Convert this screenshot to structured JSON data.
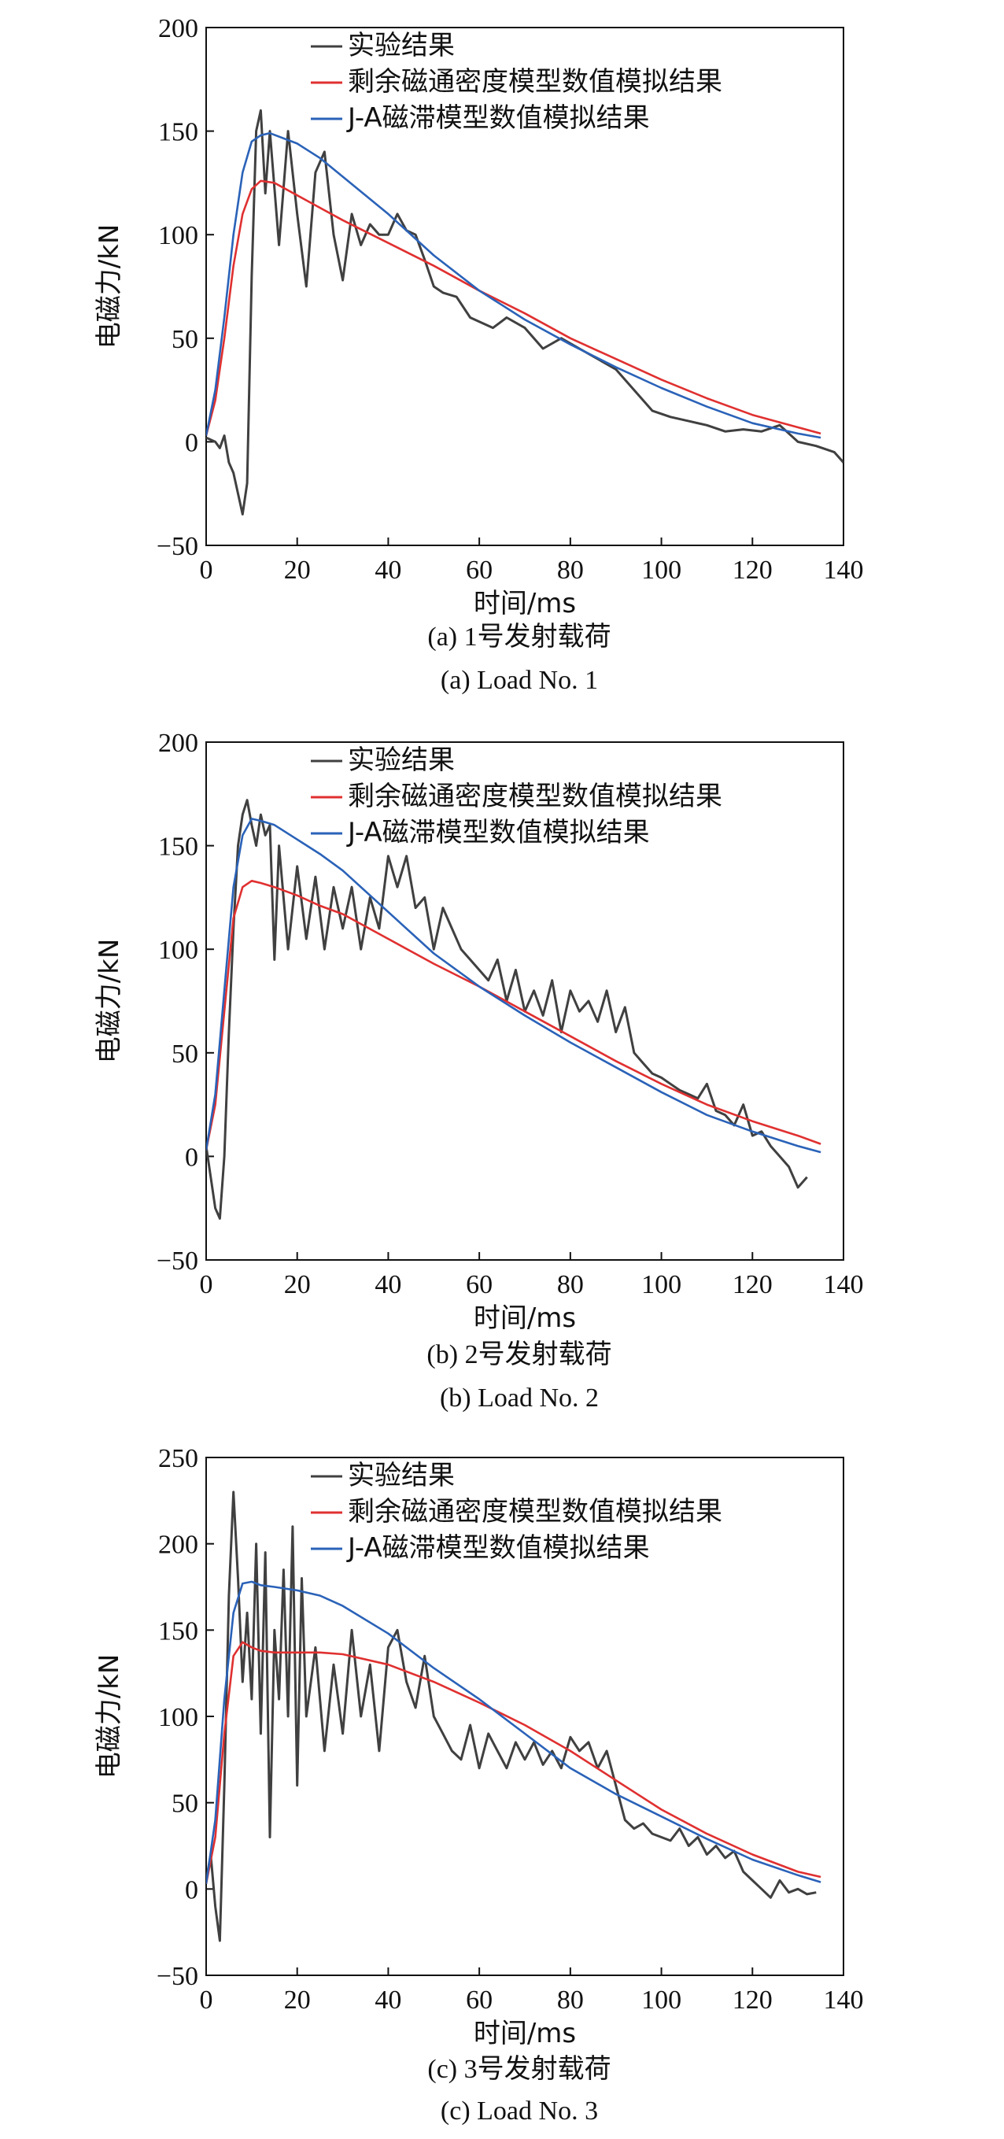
{
  "colors": {
    "experiment": "#404040",
    "residual": "#e03030",
    "ja": "#2a62b8",
    "axis": "#111111"
  },
  "chart_data": [
    {
      "type": "line",
      "xlabel": "时间/ms",
      "ylabel": "电磁力/kN",
      "xlim": [
        0,
        140
      ],
      "ylim": [
        -50,
        200
      ],
      "xticks": [
        "0",
        "20",
        "40",
        "60",
        "80",
        "100",
        "120",
        "140"
      ],
      "yticks": [
        "−50",
        "0",
        "50",
        "100",
        "150",
        "200"
      ],
      "caption_cn": "(a) 1号发射载荷",
      "caption_en": "(a) Load No. 1",
      "legend": [
        "实验结果",
        "剩余磁通密度模型数值模拟结果",
        "J-A磁滞模型数值模拟结果"
      ],
      "series": [
        {
          "name": "实验结果",
          "x": [
            0,
            2,
            3,
            4,
            5,
            6,
            7,
            8,
            9,
            10,
            11,
            12,
            13,
            14,
            16,
            18,
            20,
            22,
            24,
            26,
            28,
            30,
            32,
            34,
            36,
            38,
            40,
            42,
            44,
            46,
            48,
            50,
            52,
            55,
            58,
            60,
            63,
            66,
            70,
            74,
            78,
            82,
            86,
            90,
            94,
            98,
            102,
            106,
            110,
            114,
            118,
            122,
            126,
            130,
            134,
            138,
            140
          ],
          "y": [
            2,
            0,
            -3,
            3,
            -10,
            -15,
            -25,
            -35,
            -20,
            80,
            150,
            160,
            120,
            150,
            95,
            150,
            110,
            75,
            130,
            140,
            100,
            78,
            110,
            95,
            105,
            100,
            100,
            110,
            102,
            100,
            88,
            75,
            72,
            70,
            60,
            58,
            55,
            60,
            55,
            45,
            50,
            45,
            40,
            35,
            25,
            15,
            12,
            10,
            8,
            5,
            6,
            5,
            8,
            0,
            -2,
            -5,
            -10
          ]
        },
        {
          "name": "剩余磁通密度模型数值模拟结果",
          "x": [
            0,
            2,
            4,
            6,
            8,
            10,
            12,
            15,
            20,
            25,
            30,
            40,
            50,
            60,
            70,
            80,
            90,
            100,
            110,
            120,
            130,
            135
          ],
          "y": [
            3,
            20,
            50,
            85,
            110,
            122,
            126,
            125,
            119,
            113,
            107,
            96,
            85,
            73,
            62,
            50,
            40,
            30,
            21,
            13,
            7,
            4
          ]
        },
        {
          "name": "J-A磁滞模型数值模拟结果",
          "x": [
            0,
            2,
            4,
            6,
            8,
            10,
            12,
            14,
            20,
            25,
            30,
            40,
            50,
            60,
            70,
            80,
            90,
            100,
            110,
            120,
            130,
            135
          ],
          "y": [
            3,
            25,
            60,
            100,
            130,
            145,
            148,
            149,
            144,
            137,
            128,
            110,
            90,
            73,
            59,
            47,
            36,
            26,
            17,
            9,
            4,
            2
          ]
        }
      ]
    },
    {
      "type": "line",
      "xlabel": "时间/ms",
      "ylabel": "电磁力/kN",
      "xlim": [
        0,
        140
      ],
      "ylim": [
        -50,
        200
      ],
      "xticks": [
        "0",
        "20",
        "40",
        "60",
        "80",
        "100",
        "120",
        "140"
      ],
      "yticks": [
        "−50",
        "0",
        "50",
        "100",
        "150",
        "200"
      ],
      "caption_cn": "(b) 2号发射载荷",
      "caption_en": "(b) Load No. 2",
      "legend": [
        "实验结果",
        "剩余磁通密度模型数值模拟结果",
        "J-A磁滞模型数值模拟结果"
      ],
      "series": [
        {
          "name": "实验结果",
          "x": [
            0,
            1,
            2,
            3,
            4,
            5,
            6,
            7,
            8,
            9,
            10,
            11,
            12,
            13,
            14,
            15,
            16,
            18,
            20,
            22,
            24,
            26,
            28,
            30,
            32,
            34,
            36,
            38,
            40,
            42,
            44,
            46,
            48,
            50,
            52,
            54,
            56,
            58,
            60,
            62,
            64,
            66,
            68,
            70,
            72,
            74,
            76,
            78,
            80,
            82,
            84,
            86,
            88,
            90,
            92,
            94,
            96,
            98,
            100,
            102,
            104,
            106,
            108,
            110,
            112,
            114,
            116,
            118,
            120,
            122,
            124,
            126,
            128,
            130,
            132
          ],
          "y": [
            5,
            -10,
            -25,
            -30,
            0,
            60,
            110,
            150,
            165,
            172,
            160,
            150,
            165,
            155,
            160,
            95,
            150,
            100,
            140,
            105,
            135,
            100,
            130,
            110,
            130,
            100,
            125,
            110,
            145,
            130,
            145,
            120,
            125,
            100,
            120,
            110,
            100,
            95,
            90,
            85,
            95,
            75,
            90,
            70,
            80,
            68,
            85,
            60,
            80,
            70,
            75,
            65,
            80,
            60,
            72,
            50,
            45,
            40,
            38,
            35,
            32,
            30,
            28,
            35,
            22,
            20,
            15,
            25,
            10,
            12,
            5,
            0,
            -5,
            -15,
            -10
          ]
        },
        {
          "name": "剩余磁通密度模型数值模拟结果",
          "x": [
            0,
            2,
            4,
            6,
            8,
            10,
            12,
            15,
            20,
            25,
            30,
            40,
            50,
            60,
            70,
            80,
            90,
            100,
            110,
            120,
            130,
            135
          ],
          "y": [
            3,
            25,
            70,
            115,
            130,
            133,
            132,
            130,
            126,
            121,
            117,
            105,
            93,
            82,
            70,
            58,
            46,
            35,
            25,
            17,
            10,
            6
          ]
        },
        {
          "name": "J-A磁滞模型数值模拟结果",
          "x": [
            0,
            2,
            4,
            6,
            8,
            10,
            12,
            15,
            20,
            25,
            30,
            40,
            50,
            60,
            70,
            80,
            90,
            100,
            110,
            120,
            130,
            135
          ],
          "y": [
            3,
            30,
            80,
            130,
            155,
            163,
            162,
            160,
            153,
            146,
            138,
            118,
            98,
            82,
            68,
            55,
            43,
            31,
            20,
            12,
            5,
            2
          ]
        }
      ]
    },
    {
      "type": "line",
      "xlabel": "时间/ms",
      "ylabel": "电磁力/kN",
      "xlim": [
        0,
        140
      ],
      "ylim": [
        -50,
        250
      ],
      "xticks": [
        "0",
        "20",
        "40",
        "60",
        "80",
        "100",
        "120",
        "140"
      ],
      "yticks": [
        "−50",
        "0",
        "50",
        "100",
        "150",
        "200",
        "250"
      ],
      "caption_cn": "(c) 3号发射载荷",
      "caption_en": "(c) Load No. 3",
      "legend": [
        "实验结果",
        "剩余磁通密度模型数值模拟结果",
        "J-A磁滞模型数值模拟结果"
      ],
      "series": [
        {
          "name": "实验结果",
          "x": [
            0,
            1,
            2,
            3,
            4,
            5,
            6,
            7,
            8,
            9,
            10,
            11,
            12,
            13,
            14,
            15,
            16,
            17,
            18,
            19,
            20,
            21,
            22,
            24,
            26,
            28,
            30,
            32,
            34,
            36,
            38,
            40,
            42,
            44,
            46,
            48,
            50,
            52,
            54,
            56,
            58,
            60,
            62,
            64,
            66,
            68,
            70,
            72,
            74,
            76,
            78,
            80,
            82,
            84,
            86,
            88,
            90,
            92,
            94,
            96,
            98,
            100,
            102,
            104,
            106,
            108,
            110,
            112,
            114,
            116,
            118,
            120,
            122,
            124,
            126,
            128,
            130,
            132,
            134
          ],
          "y": [
            5,
            20,
            -10,
            -30,
            60,
            170,
            230,
            180,
            120,
            160,
            110,
            200,
            90,
            195,
            30,
            150,
            110,
            185,
            100,
            210,
            60,
            180,
            100,
            140,
            80,
            130,
            90,
            150,
            100,
            130,
            80,
            140,
            150,
            120,
            105,
            135,
            100,
            90,
            80,
            75,
            95,
            70,
            90,
            80,
            70,
            85,
            75,
            85,
            72,
            80,
            70,
            88,
            80,
            85,
            70,
            80,
            60,
            40,
            35,
            38,
            32,
            30,
            28,
            35,
            25,
            30,
            20,
            25,
            18,
            22,
            10,
            5,
            0,
            -5,
            5,
            -2,
            0,
            -3,
            -2
          ]
        },
        {
          "name": "剩余磁通密度模型数值模拟结果",
          "x": [
            0,
            2,
            4,
            6,
            8,
            10,
            12,
            15,
            20,
            25,
            30,
            40,
            50,
            60,
            70,
            80,
            90,
            100,
            110,
            120,
            130,
            135
          ],
          "y": [
            3,
            30,
            90,
            135,
            143,
            140,
            138,
            137,
            137,
            137,
            136,
            130,
            120,
            108,
            95,
            80,
            63,
            46,
            32,
            20,
            10,
            7
          ]
        },
        {
          "name": "J-A磁滞模型数值模拟结果",
          "x": [
            0,
            2,
            4,
            6,
            8,
            10,
            12,
            15,
            20,
            25,
            30,
            40,
            50,
            60,
            70,
            80,
            90,
            100,
            110,
            120,
            130,
            135
          ],
          "y": [
            3,
            40,
            110,
            160,
            177,
            178,
            176,
            175,
            173,
            170,
            164,
            148,
            128,
            110,
            90,
            70,
            55,
            42,
            29,
            17,
            8,
            4
          ]
        }
      ]
    }
  ]
}
